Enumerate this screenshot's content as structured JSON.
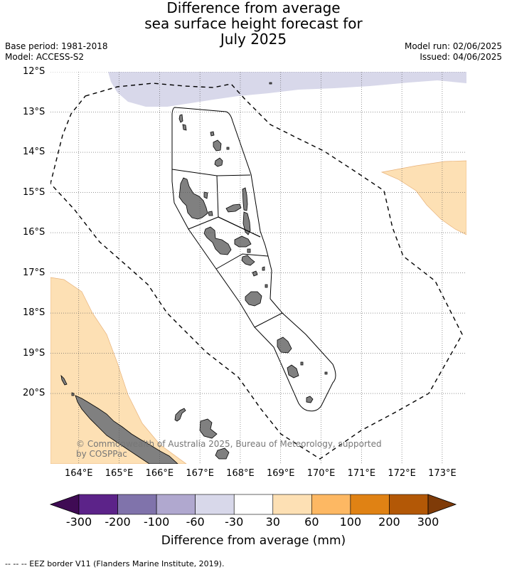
{
  "title": {
    "line1": "Difference from average",
    "line2": "sea surface height forecast for",
    "line3": "July 2025"
  },
  "meta": {
    "base_period": "Base period: 1981-2018",
    "model": "Model: ACCESS-S2",
    "model_run": "Model run: 02/06/2025",
    "issued": "Issued: 04/06/2025"
  },
  "map": {
    "extent": {
      "lon_min": 163.3,
      "lon_max": 173.6,
      "lat_max": -12.0,
      "lat_min": -21.75
    },
    "lat_ticks": [
      {
        "value": -12,
        "label": "12°S"
      },
      {
        "value": -13,
        "label": "13°S"
      },
      {
        "value": -14,
        "label": "14°S"
      },
      {
        "value": -15,
        "label": "15°S"
      },
      {
        "value": -16,
        "label": "16°S"
      },
      {
        "value": -17,
        "label": "17°S"
      },
      {
        "value": -18,
        "label": "18°S"
      },
      {
        "value": -19,
        "label": "19°S"
      },
      {
        "value": -20,
        "label": "20°S"
      }
    ],
    "lon_ticks": [
      {
        "value": 164,
        "label": "164°E"
      },
      {
        "value": 165,
        "label": "165°E"
      },
      {
        "value": 166,
        "label": "166°E"
      },
      {
        "value": 167,
        "label": "167°E"
      },
      {
        "value": 168,
        "label": "168°E"
      },
      {
        "value": 169,
        "label": "169°E"
      },
      {
        "value": 170,
        "label": "170°E"
      },
      {
        "value": 171,
        "label": "171°E"
      },
      {
        "value": 172,
        "label": "172°E"
      },
      {
        "value": 173,
        "label": "173°E"
      }
    ],
    "colors": {
      "land": "#808080",
      "anomaly_neg": "#d8d8ea",
      "anomaly_pos": "#fde0b4",
      "anomaly_pos_edge": "#e8b27a",
      "grid": "#555555"
    },
    "copyright": "© Commonwealth of Australia 2025, Bureau of Meteorology, supported",
    "copyright2": "by COSPPac"
  },
  "colorbar": {
    "colors": [
      "#3f0b54",
      "#5c2389",
      "#8073ab",
      "#b0a8cf",
      "#d8d8ea",
      "#ffffff",
      "#fde0b4",
      "#fdb863",
      "#e08214",
      "#b35806",
      "#7f3b08"
    ],
    "ticks": [
      "-300",
      "-200",
      "-100",
      "-60",
      "-30",
      "30",
      "60",
      "100",
      "200",
      "300"
    ],
    "label": "Difference from average (mm)"
  },
  "footer": "--  --  -- EEZ border V11 (Flanders Marine Institute, 2019)."
}
